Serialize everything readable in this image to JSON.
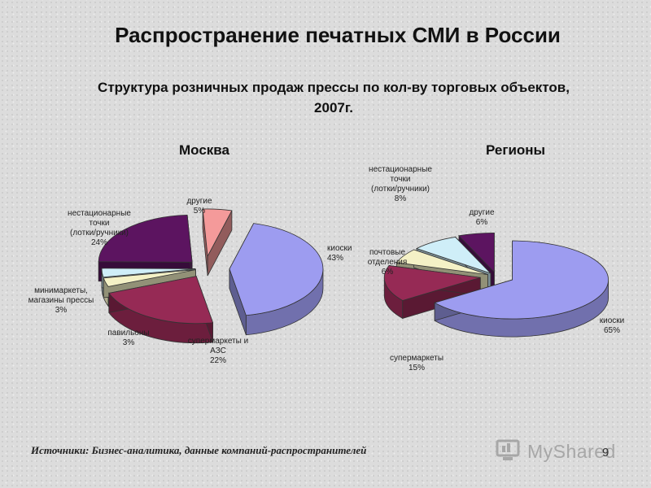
{
  "header": {
    "title": "Распространение печатных СМИ в России",
    "subtitle_line1": "Структура розничных продаж прессы по кол-ву торговых объектов,",
    "subtitle_line2": "2007г."
  },
  "chart_data": [
    {
      "type": "pie",
      "title": "Москва",
      "slices": [
        {
          "label": [
            "киоски",
            "43%"
          ],
          "value": 43,
          "color": "#9d9cf0"
        },
        {
          "label": [
            "супермаркеты и",
            "АЗС",
            "22%"
          ],
          "value": 22,
          "color": "#962a55"
        },
        {
          "label": [
            "павильоны",
            "3%"
          ],
          "value": 3,
          "color": "#f4f1c6"
        },
        {
          "label": [
            "минимаркеты,",
            "магазины прессы",
            "3%"
          ],
          "value": 3,
          "color": "#cfeef8"
        },
        {
          "label": [
            "нестационарные",
            "точки",
            "(лотки/ручники)",
            "24%"
          ],
          "value": 24,
          "color": "#5c1460"
        },
        {
          "label": [
            "другие",
            "5%"
          ],
          "value": 5,
          "color": "#f49a9a"
        }
      ]
    },
    {
      "type": "pie",
      "title": "Регионы",
      "slices": [
        {
          "label": [
            "киоски",
            "65%"
          ],
          "value": 65,
          "color": "#9d9cf0"
        },
        {
          "label": [
            "супермаркеты",
            "15%"
          ],
          "value": 15,
          "color": "#962a55"
        },
        {
          "label": [
            "почтовые",
            "отделения",
            "6%"
          ],
          "value": 6,
          "color": "#f4f1c6"
        },
        {
          "label": [
            "нестационарные",
            "точки",
            "(лотки/ручники)",
            "8%"
          ],
          "value": 8,
          "color": "#cfeef8"
        },
        {
          "label": [
            "другие",
            "6%"
          ],
          "value": 6,
          "color": "#5c1460"
        }
      ]
    }
  ],
  "footer": {
    "source": "Источники: Бизнес-аналитика, данные компаний-распространителей",
    "page_number": "9",
    "watermark": "MyShared"
  }
}
